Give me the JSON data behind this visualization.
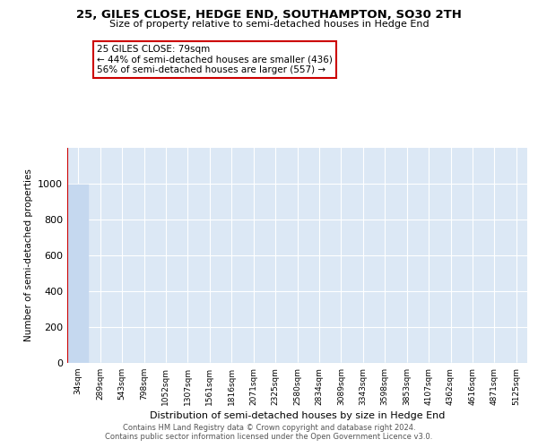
{
  "title": "25, GILES CLOSE, HEDGE END, SOUTHAMPTON, SO30 2TH",
  "subtitle": "Size of property relative to semi-detached houses in Hedge End",
  "xlabel": "Distribution of semi-detached houses by size in Hedge End",
  "ylabel": "Number of semi-detached properties",
  "bin_labels": [
    "34sqm",
    "289sqm",
    "543sqm",
    "798sqm",
    "1052sqm",
    "1307sqm",
    "1561sqm",
    "1816sqm",
    "2071sqm",
    "2325sqm",
    "2580sqm",
    "2834sqm",
    "3089sqm",
    "3343sqm",
    "3598sqm",
    "3853sqm",
    "4107sqm",
    "4362sqm",
    "4616sqm",
    "4871sqm",
    "5125sqm"
  ],
  "bar_heights": [
    993,
    0,
    0,
    0,
    0,
    0,
    0,
    0,
    0,
    0,
    0,
    0,
    0,
    0,
    0,
    0,
    0,
    0,
    0,
    0,
    0
  ],
  "bar_color": "#c5d8ef",
  "bar_edge_color": "#c5d8ef",
  "property_line_color": "#cc0000",
  "annotation_title": "25 GILES CLOSE: 79sqm",
  "annotation_line1": "← 44% of semi-detached houses are smaller (436)",
  "annotation_line2": "56% of semi-detached houses are larger (557) →",
  "annotation_box_color": "#cc0000",
  "ylim": [
    0,
    1200
  ],
  "yticks": [
    0,
    200,
    400,
    600,
    800,
    1000
  ],
  "footer1": "Contains HM Land Registry data © Crown copyright and database right 2024.",
  "footer2": "Contains public sector information licensed under the Open Government Licence v3.0.",
  "background_color": "#dce8f5",
  "grid_color": "#ffffff"
}
